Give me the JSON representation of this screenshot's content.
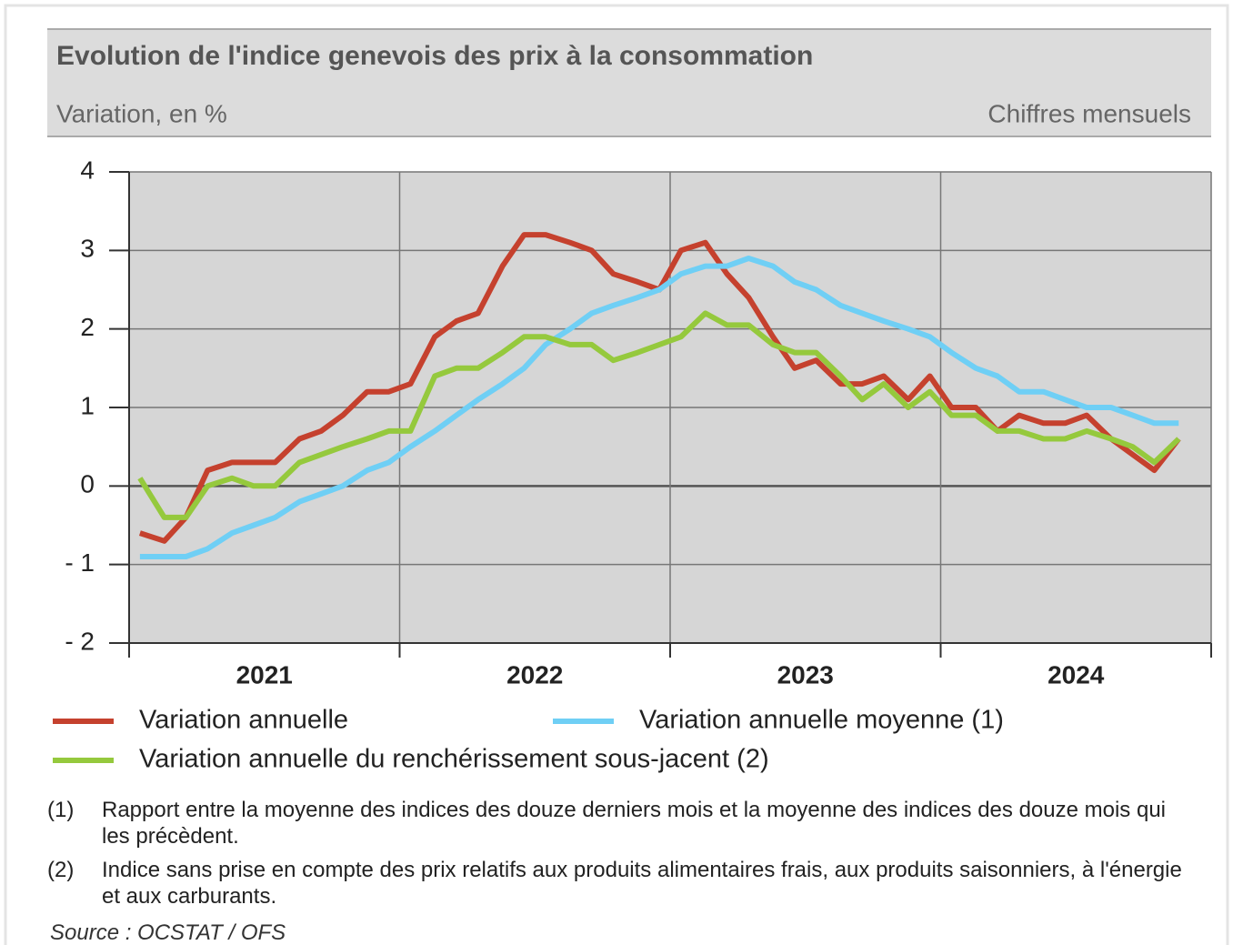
{
  "chart_data": {
    "type": "line",
    "title": "Evolution de l'indice genevois des prix à la consommation",
    "subtitle": "Variation, en %",
    "subtitle_right": "Chiffres mensuels",
    "x": [
      2021.04,
      2021.13,
      2021.21,
      2021.29,
      2021.38,
      2021.46,
      2021.54,
      2021.63,
      2021.71,
      2021.79,
      2021.88,
      2021.96,
      2022.04,
      2022.13,
      2022.21,
      2022.29,
      2022.38,
      2022.46,
      2022.54,
      2022.63,
      2022.71,
      2022.79,
      2022.88,
      2022.96,
      2023.04,
      2023.13,
      2023.21,
      2023.29,
      2023.38,
      2023.46,
      2023.54,
      2023.63,
      2023.71,
      2023.79,
      2023.88,
      2023.96,
      2024.04,
      2024.13,
      2024.21,
      2024.29,
      2024.38,
      2024.46,
      2024.54,
      2024.63,
      2024.71,
      2024.79,
      2024.88
    ],
    "xlim": [
      2021,
      2025
    ],
    "xticks": [
      2021,
      2022,
      2023,
      2024,
      2025
    ],
    "year_labels": [
      "2021",
      "2022",
      "2023",
      "2024"
    ],
    "ylim": [
      -2,
      4
    ],
    "yticks": [
      {
        "value": -2,
        "label": "- 2"
      },
      {
        "value": -1,
        "label": "- 1"
      },
      0,
      1,
      2,
      3,
      4
    ],
    "grid": true,
    "series": [
      {
        "name": "Variation annuelle",
        "color": "#c5412e",
        "values": [
          -0.6,
          -0.7,
          -0.4,
          0.2,
          0.3,
          0.3,
          0.3,
          0.6,
          0.7,
          0.9,
          1.2,
          1.2,
          1.3,
          1.9,
          2.1,
          2.2,
          2.8,
          3.2,
          3.2,
          3.1,
          3.0,
          2.7,
          2.6,
          2.5,
          3.0,
          3.1,
          2.7,
          2.4,
          1.9,
          1.5,
          1.6,
          1.3,
          1.3,
          1.4,
          1.1,
          1.4,
          1.0,
          1.0,
          0.7,
          0.9,
          0.8,
          0.8,
          0.9,
          0.6,
          0.4,
          0.2,
          0.6
        ]
      },
      {
        "name": "Variation annuelle moyenne (1)",
        "color": "#6fcff5",
        "values": [
          -0.9,
          -0.9,
          -0.9,
          -0.8,
          -0.6,
          -0.5,
          -0.4,
          -0.2,
          -0.1,
          0.0,
          0.2,
          0.3,
          0.5,
          0.7,
          0.9,
          1.1,
          1.3,
          1.5,
          1.8,
          2.0,
          2.2,
          2.3,
          2.4,
          2.5,
          2.7,
          2.8,
          2.8,
          2.9,
          2.8,
          2.6,
          2.5,
          2.3,
          2.2,
          2.1,
          2.0,
          1.9,
          1.7,
          1.5,
          1.4,
          1.2,
          1.2,
          1.1,
          1.0,
          1.0,
          0.9,
          0.8,
          0.8
        ]
      },
      {
        "name": "Variation annuelle du renchérissement sous-jacent (2)",
        "color": "#95c93d",
        "values": [
          0.1,
          -0.4,
          -0.4,
          0.0,
          0.1,
          0.0,
          0.0,
          0.3,
          0.4,
          0.5,
          0.6,
          0.7,
          0.7,
          1.4,
          1.5,
          1.5,
          1.7,
          1.9,
          1.9,
          1.8,
          1.8,
          1.6,
          1.7,
          1.8,
          1.9,
          2.2,
          2.05,
          2.05,
          1.8,
          1.7,
          1.7,
          1.4,
          1.1,
          1.3,
          1.0,
          1.2,
          0.9,
          0.9,
          0.7,
          0.7,
          0.6,
          0.6,
          0.7,
          0.6,
          0.5,
          0.3,
          0.6
        ]
      }
    ],
    "notes": [
      {
        "marker": "(1)",
        "text": "Rapport entre la moyenne des indices des douze derniers mois et la moyenne des indices des douze mois qui les précèdent."
      },
      {
        "marker": "(2)",
        "text": "Indice sans prise en compte des prix relatifs aux produits alimentaires frais, aux produits saisonniers, à l'énergie et aux carburants."
      }
    ],
    "source": "Source : OCSTAT / OFS"
  }
}
